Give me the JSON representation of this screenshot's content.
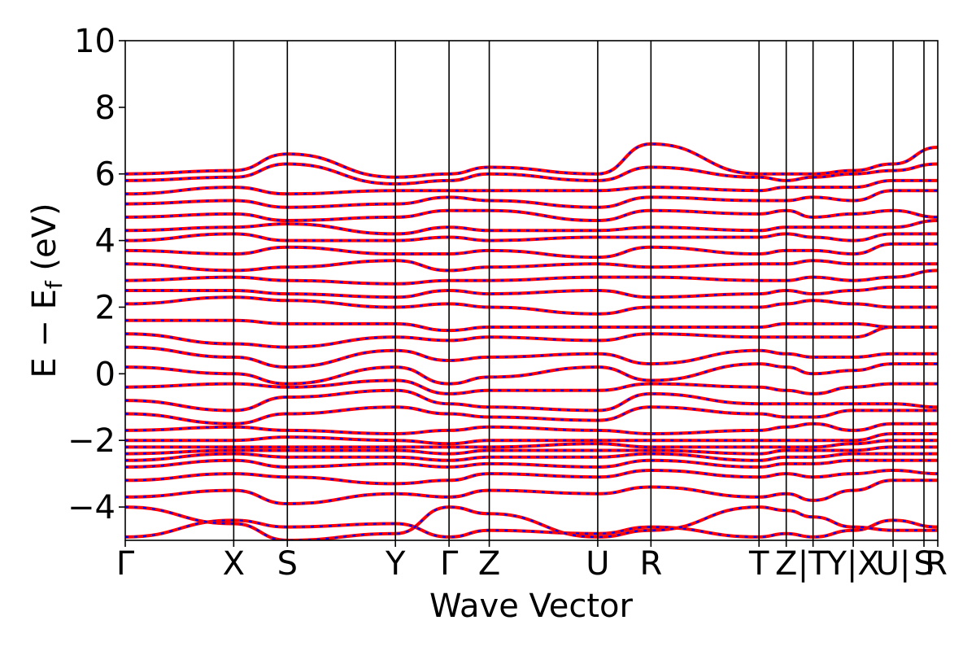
{
  "chart_data": {
    "type": "line",
    "title": "",
    "xlabel": "Wave Vector",
    "ylabel": {
      "main": "E − E",
      "sub": "f",
      "unit": " (eV)"
    },
    "ylim": [
      -5,
      10
    ],
    "y_ticks": [
      -4,
      -2,
      0,
      2,
      4,
      6,
      8,
      10
    ],
    "y_tick_labels": [
      "−4",
      "−2",
      "0",
      "2",
      "4",
      "6",
      "8",
      "10"
    ],
    "x_range": [
      0,
      1
    ],
    "kpoints": [
      {
        "label": "Γ",
        "pos": 0.0
      },
      {
        "label": "X",
        "pos": 0.1335
      },
      {
        "label": "S",
        "pos": 0.1995
      },
      {
        "label": "Y",
        "pos": 0.3325
      },
      {
        "label": "Γ",
        "pos": 0.3985
      },
      {
        "label": "Z",
        "pos": 0.448
      },
      {
        "label": "U",
        "pos": 0.5815
      },
      {
        "label": "R",
        "pos": 0.647
      },
      {
        "label": "T",
        "pos": 0.78
      },
      {
        "label": "Z",
        "pos": 0.8135
      },
      {
        "label": "|T",
        "pos": 0.8465
      },
      {
        "label": "Y|X",
        "pos": 0.896
      },
      {
        "label": "U|",
        "pos": 0.945
      },
      {
        "label": "S",
        "pos": 0.983
      },
      {
        "label": "R",
        "pos": 1.0
      }
    ],
    "grid": false,
    "legend": "none",
    "series_colors": {
      "red": "#ff0000",
      "blue": "#0000ff",
      "vline": "#000000"
    },
    "band_samples_x": [
      0,
      0.1335,
      0.1995,
      0.3325,
      0.3985,
      0.448,
      0.5815,
      0.647,
      0.78,
      0.8135,
      0.8465,
      0.896,
      0.945,
      1.0
    ],
    "bands": [
      [
        -4.9,
        -4.4,
        -4.6,
        -4.5,
        -4.9,
        -4.7,
        -4.8,
        -4.6,
        -4.9,
        -4.8,
        -4.9,
        -4.7,
        -4.4,
        -4.6
      ],
      [
        -4.0,
        -4.5,
        -5.0,
        -4.8,
        -4.0,
        -4.2,
        -4.9,
        -4.7,
        -4.0,
        -4.1,
        -4.3,
        -4.6,
        -4.7,
        -4.7
      ],
      [
        -3.7,
        -3.5,
        -3.9,
        -3.6,
        -3.7,
        -3.5,
        -3.6,
        -3.4,
        -3.7,
        -3.6,
        -3.8,
        -3.5,
        -3.2,
        -3.2
      ],
      [
        -3.2,
        -3.0,
        -3.1,
        -3.3,
        -3.2,
        -3.0,
        -3.1,
        -2.9,
        -3.1,
        -3.0,
        -3.1,
        -3.0,
        -2.9,
        -3.0
      ],
      [
        -2.8,
        -2.6,
        -2.8,
        -2.7,
        -2.8,
        -2.7,
        -2.8,
        -2.6,
        -2.8,
        -2.7,
        -2.7,
        -2.6,
        -2.6,
        -2.6
      ],
      [
        -2.6,
        -2.4,
        -2.5,
        -2.5,
        -2.6,
        -2.5,
        -2.5,
        -2.4,
        -2.6,
        -2.5,
        -2.5,
        -2.4,
        -2.4,
        -2.4
      ],
      [
        -2.4,
        -2.3,
        -2.3,
        -2.3,
        -2.4,
        -2.3,
        -2.3,
        -2.3,
        -2.4,
        -2.3,
        -2.3,
        -2.3,
        -2.2,
        -2.2
      ],
      [
        -2.2,
        -2.2,
        -2.2,
        -2.2,
        -2.2,
        -2.2,
        -2.1,
        -2.2,
        -2.2,
        -2.2,
        -2.2,
        -2.1,
        -2.0,
        -2.0
      ],
      [
        -2.0,
        -2.0,
        -1.9,
        -2.0,
        -2.1,
        -2.0,
        -2.0,
        -2.0,
        -2.0,
        -2.0,
        -2.0,
        -2.0,
        -1.8,
        -1.8
      ],
      [
        -1.7,
        -1.6,
        -1.7,
        -1.8,
        -1.7,
        -1.6,
        -1.7,
        -1.8,
        -1.7,
        -1.6,
        -1.5,
        -1.7,
        -1.5,
        -1.5
      ],
      [
        -1.2,
        -1.5,
        -1.2,
        -1.0,
        -1.2,
        -1.3,
        -1.4,
        -1.0,
        -1.2,
        -1.3,
        -1.3,
        -1.1,
        -1.1,
        -1.1
      ],
      [
        -0.8,
        -1.1,
        -0.7,
        -0.5,
        -0.9,
        -1.0,
        -1.1,
        -0.6,
        -0.9,
        -0.9,
        -0.9,
        -0.9,
        -0.9,
        -1.0
      ],
      [
        -0.4,
        -0.3,
        -0.4,
        -0.2,
        -0.6,
        -0.5,
        -0.5,
        -0.3,
        -0.4,
        -0.5,
        -0.6,
        -0.4,
        -0.3,
        -0.3
      ],
      [
        0.2,
        0.0,
        -0.3,
        0.2,
        -0.3,
        -0.1,
        0.2,
        -0.2,
        0.3,
        0.2,
        0.0,
        0.1,
        0.3,
        0.3
      ],
      [
        0.8,
        0.5,
        0.2,
        0.7,
        0.4,
        0.5,
        0.6,
        0.3,
        0.7,
        0.6,
        0.5,
        0.5,
        0.6,
        0.6
      ],
      [
        1.2,
        0.9,
        0.8,
        1.1,
        1.0,
        1.1,
        1.0,
        1.2,
        1.1,
        1.1,
        1.1,
        1.1,
        1.4,
        1.4
      ],
      [
        1.6,
        1.6,
        1.5,
        1.5,
        1.3,
        1.4,
        1.4,
        1.4,
        1.4,
        1.5,
        1.5,
        1.5,
        1.4,
        1.4
      ],
      [
        2.1,
        2.3,
        2.2,
        2.0,
        2.1,
        2.0,
        1.8,
        2.0,
        2.0,
        2.1,
        2.2,
        2.1,
        2.0,
        2.0
      ],
      [
        2.5,
        2.5,
        2.4,
        2.3,
        2.5,
        2.4,
        2.5,
        2.3,
        2.4,
        2.5,
        2.4,
        2.5,
        2.6,
        2.6
      ],
      [
        2.8,
        2.9,
        2.8,
        2.7,
        2.8,
        2.8,
        2.9,
        2.9,
        2.8,
        2.8,
        2.9,
        2.8,
        2.9,
        3.1
      ],
      [
        3.3,
        3.1,
        3.2,
        3.4,
        3.1,
        3.2,
        3.3,
        3.2,
        3.3,
        3.3,
        3.4,
        3.3,
        3.3,
        3.3
      ],
      [
        3.7,
        3.6,
        3.8,
        3.6,
        3.6,
        3.7,
        3.5,
        3.8,
        3.6,
        3.7,
        3.7,
        3.6,
        3.9,
        3.9
      ],
      [
        4.0,
        4.2,
        4.0,
        4.0,
        4.1,
        4.0,
        4.1,
        4.1,
        4.1,
        4.2,
        4.1,
        4.0,
        4.2,
        4.2
      ],
      [
        4.3,
        4.4,
        4.5,
        4.2,
        4.4,
        4.3,
        4.3,
        4.4,
        4.3,
        4.4,
        4.4,
        4.4,
        4.4,
        4.6
      ],
      [
        4.7,
        4.8,
        4.6,
        4.7,
        4.9,
        4.9,
        4.6,
        4.9,
        4.8,
        4.9,
        4.7,
        4.8,
        4.9,
        4.7
      ],
      [
        5.1,
        5.2,
        5.0,
        5.1,
        5.3,
        5.2,
        5.0,
        5.3,
        5.2,
        5.2,
        5.3,
        5.2,
        5.5,
        5.5
      ],
      [
        5.4,
        5.6,
        5.4,
        5.5,
        5.5,
        5.5,
        5.5,
        5.6,
        5.5,
        5.6,
        5.6,
        5.6,
        5.8,
        5.8
      ],
      [
        5.8,
        5.9,
        6.3,
        5.7,
        5.8,
        6.0,
        5.8,
        6.2,
        5.9,
        5.8,
        5.9,
        6.0,
        6.1,
        6.3
      ],
      [
        6.0,
        6.1,
        6.6,
        5.9,
        6.0,
        6.2,
        6.0,
        6.9,
        6.0,
        6.0,
        6.0,
        6.1,
        6.3,
        6.8
      ]
    ]
  }
}
